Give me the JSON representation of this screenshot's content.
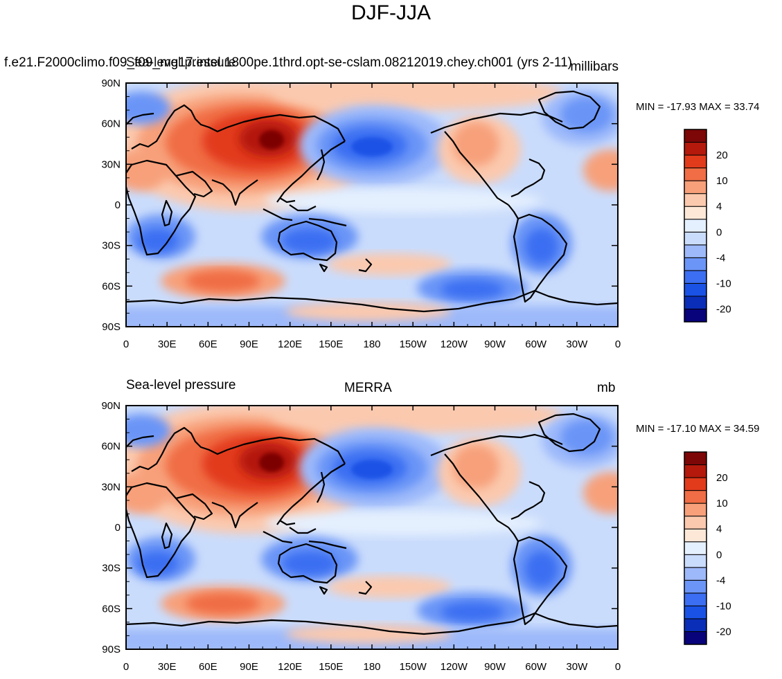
{
  "title": "DJF-JJA",
  "colorbar": {
    "colors": [
      "#08037a",
      "#0a2eb8",
      "#1a52e6",
      "#3b6ef2",
      "#6b95f7",
      "#9db9fa",
      "#cadcfc",
      "#e5f0fe",
      "#fde8d8",
      "#fbc9ae",
      "#f7a07a",
      "#f06d45",
      "#e23b1b",
      "#b4190b",
      "#7d0606"
    ],
    "labels": [
      "-20",
      "-10",
      "-4",
      "0",
      "4",
      "10",
      "20"
    ]
  },
  "lon_ticks": [
    "0",
    "30E",
    "60E",
    "90E",
    "120E",
    "150E",
    "180",
    "150W",
    "120W",
    "90W",
    "60W",
    "30W",
    "0"
  ],
  "lat_ticks": [
    "90N",
    "60N",
    "30N",
    "0",
    "30S",
    "60S",
    "90S"
  ],
  "panels": [
    {
      "left_title": "",
      "center_title": "f.e21.F2000climo.f09_f09_mg17.intel.1800pe.1thrd.opt-se-cslam.08212019.chey.ch001 (yrs 2-11)",
      "overlay_title": "Sea-level pressure",
      "right_title": "millibars",
      "minmax": "MIN = -17.93 MAX =  33.74"
    },
    {
      "left_title": "Sea-level pressure",
      "center_title": "MERRA",
      "right_title": "mb",
      "minmax": "MIN = -17.10 MAX =  34.59"
    }
  ]
}
